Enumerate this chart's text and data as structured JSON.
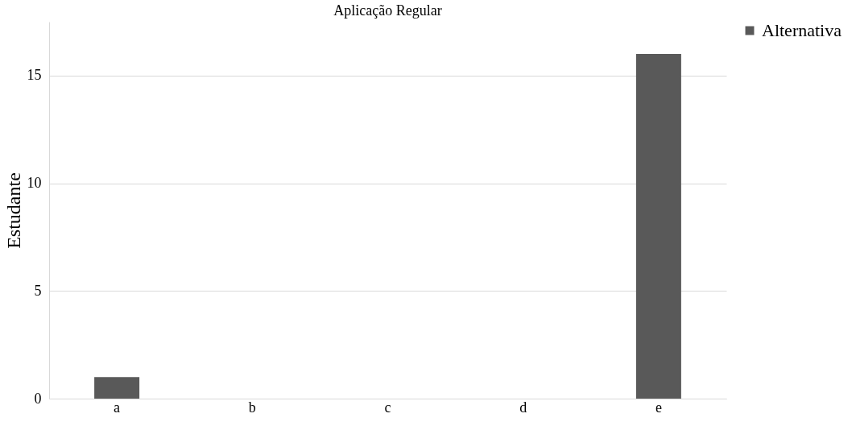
{
  "chart_data": {
    "type": "bar",
    "title": "Aplicação Regular",
    "ylabel": "Estudante",
    "categories": [
      "a",
      "b",
      "c",
      "d",
      "e"
    ],
    "series": [
      {
        "name": "Alternativa",
        "color": "#595959",
        "values": [
          1,
          0,
          0,
          0,
          16
        ]
      }
    ],
    "ylim": [
      0,
      17.5
    ],
    "yticks": [
      0,
      5,
      10,
      15
    ],
    "grid": "y",
    "legend": "right"
  }
}
